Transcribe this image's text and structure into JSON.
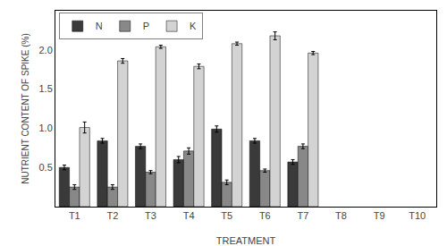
{
  "chart_data": {
    "type": "bar",
    "xlabel": "TREATMENT",
    "ylabel": "NUTRIENT CONTENT OF SPIKE (%)",
    "categories": [
      "T1",
      "T2",
      "T3",
      "T4",
      "T5",
      "T6",
      "T7",
      "T8",
      "T9",
      "T10"
    ],
    "series": [
      {
        "name": "N",
        "color": "#3a3a3a",
        "values": [
          0.5,
          0.84,
          0.77,
          0.6,
          0.99,
          0.84,
          0.57,
          null,
          null,
          null
        ],
        "error": [
          0.03,
          0.03,
          0.03,
          0.04,
          0.04,
          0.03,
          0.03,
          null,
          null,
          null
        ]
      },
      {
        "name": "P",
        "color": "#888888",
        "values": [
          0.25,
          0.25,
          0.44,
          0.71,
          0.31,
          0.46,
          0.77,
          null,
          null,
          null
        ],
        "error": [
          0.03,
          0.03,
          0.02,
          0.04,
          0.03,
          0.02,
          0.03,
          null,
          null,
          null
        ]
      },
      {
        "name": "K",
        "color": "#d3d3d3",
        "values": [
          1.01,
          1.86,
          2.04,
          1.79,
          2.08,
          2.18,
          1.96,
          null,
          null,
          null
        ],
        "error": [
          0.07,
          0.03,
          0.02,
          0.03,
          0.02,
          0.05,
          0.02,
          null,
          null,
          null
        ]
      }
    ],
    "ylim": [
      0,
      2.5
    ],
    "yticks": [
      0.5,
      {
        "value": 1.0,
        "label": "1.0"
      },
      1.5,
      {
        "value": 2.0,
        "label": "2.0"
      }
    ],
    "grid": false,
    "legend": "upper left"
  }
}
